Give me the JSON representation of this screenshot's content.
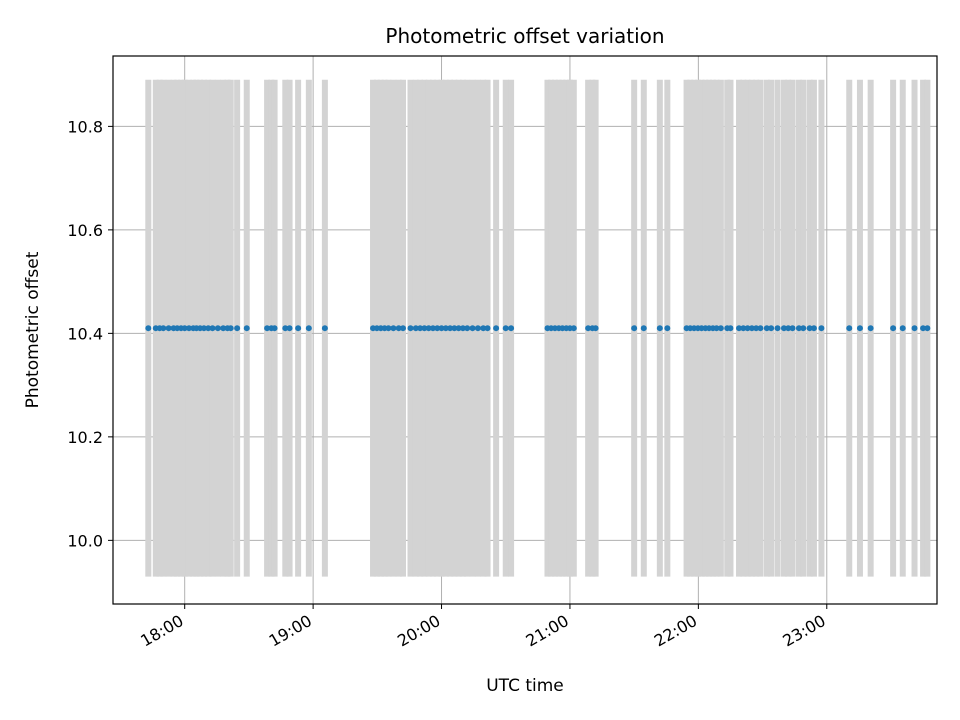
{
  "chart_data": {
    "type": "scatter",
    "title": "Photometric offset variation",
    "xlabel": "UTC time",
    "ylabel": "Photometric offset",
    "x_ticks": [
      "18:00",
      "19:00",
      "20:00",
      "21:00",
      "22:00",
      "23:00"
    ],
    "x_tick_minutes": [
      1080,
      1140,
      1200,
      1260,
      1320,
      1380
    ],
    "y_ticks": [
      "10.0",
      "10.2",
      "10.4",
      "10.6",
      "10.8"
    ],
    "y_tick_values": [
      10.0,
      10.2,
      10.4,
      10.6,
      10.8
    ],
    "xlim_minutes": [
      1046.5,
      1431.5
    ],
    "ylim": [
      9.877,
      10.936
    ],
    "grid": true,
    "marker_color": "#1f77b4",
    "errorbar_color": "#d3d3d3",
    "y_value": 10.41,
    "y_error": 0.48,
    "x_minutes": [
      1063.0,
      1066.5,
      1068.3,
      1070.0,
      1072.5,
      1074.8,
      1076.5,
      1078.3,
      1080.0,
      1082.0,
      1084.0,
      1085.5,
      1087.2,
      1089.0,
      1091.0,
      1093.0,
      1095.5,
      1098.0,
      1100.0,
      1101.5,
      1104.5,
      1109.0,
      1118.5,
      1120.5,
      1122.0,
      1127.0,
      1129.0,
      1133.0,
      1138.0,
      1145.5,
      1168.0,
      1169.8,
      1171.6,
      1173.4,
      1175.2,
      1177.5,
      1180.0,
      1182.0,
      1185.5,
      1188.0,
      1190.0,
      1192.0,
      1194.0,
      1196.0,
      1198.0,
      1200.0,
      1202.0,
      1204.0,
      1206.0,
      1208.0,
      1210.0,
      1212.0,
      1214.5,
      1217.0,
      1219.5,
      1221.5,
      1225.5,
      1230.0,
      1232.5,
      1249.5,
      1251.2,
      1253.0,
      1254.8,
      1256.5,
      1258.3,
      1260.0,
      1261.8,
      1268.5,
      1270.5,
      1272.0,
      1290.0,
      1294.5,
      1302.0,
      1305.5,
      1314.5,
      1316.2,
      1318.0,
      1319.8,
      1321.5,
      1323.3,
      1325.0,
      1326.8,
      1328.5,
      1330.5,
      1333.5,
      1335.0,
      1339.0,
      1341.0,
      1343.0,
      1345.0,
      1347.0,
      1349.0,
      1352.0,
      1354.0,
      1357.0,
      1360.0,
      1362.0,
      1364.0,
      1367.0,
      1369.0,
      1372.0,
      1374.0,
      1377.5,
      1390.5,
      1395.5,
      1400.5,
      1411.0,
      1415.5,
      1421.0,
      1425.0,
      1427.0
    ]
  }
}
